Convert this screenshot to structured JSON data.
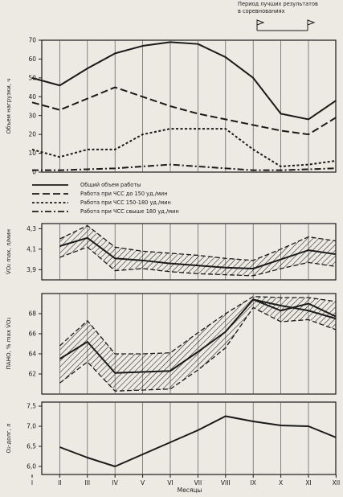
{
  "caption": {
    "line1": "Период лучших результатов",
    "line2": "в соревнованиях"
  },
  "months": [
    "I",
    "II",
    "III",
    "IV",
    "V",
    "VI",
    "VII",
    "VIII",
    "IX",
    "X",
    "XI",
    "XII"
  ],
  "xlabel": "Месяцы",
  "chart_data": [
    {
      "type": "line",
      "ylabel": "Объем нагрузки, ч",
      "ylim": [
        0,
        70
      ],
      "yticks": [
        0,
        10,
        20,
        30,
        40,
        50,
        60,
        70
      ],
      "grid": "vertical",
      "legend_placement": "bottom",
      "series": [
        {
          "name": "Общий объем работы",
          "style": "solid",
          "x": [
            1,
            2,
            3,
            4,
            5,
            6,
            7,
            8,
            9,
            10,
            11,
            12
          ],
          "y": [
            50,
            46,
            55,
            63,
            67,
            69,
            68,
            61,
            50,
            31,
            28,
            38
          ]
        },
        {
          "name": "Работа при ЧСС до 150 уд./мин",
          "style": "dashed",
          "x": [
            1,
            2,
            3,
            4,
            5,
            6,
            7,
            8,
            9,
            10,
            11,
            12
          ],
          "y": [
            37,
            33,
            39,
            45,
            40,
            35,
            31,
            28,
            25,
            22,
            20,
            29
          ]
        },
        {
          "name": "Работа при ЧСС 150-180 уд./мин",
          "style": "dotted",
          "x": [
            1,
            2,
            3,
            4,
            5,
            6,
            7,
            8,
            9,
            10,
            11,
            12
          ],
          "y": [
            12,
            8,
            12,
            12,
            20,
            23,
            23,
            23,
            12,
            3,
            4,
            6
          ]
        },
        {
          "name": "Работа при ЧСС свыше 180 уд./мин",
          "style": "dashdot",
          "x": [
            1,
            2,
            3,
            4,
            5,
            6,
            7,
            8,
            9,
            10,
            11,
            12
          ],
          "y": [
            1,
            1,
            1.5,
            2,
            3,
            4,
            3,
            2,
            1,
            1,
            1.5,
            2
          ]
        }
      ]
    },
    {
      "type": "area",
      "ylabel": "V̇O₂ max, л/мин",
      "ylim": [
        3.8,
        4.35
      ],
      "yticks": [
        3.9,
        4.1,
        4.3
      ],
      "yticklabels": [
        "3,9",
        "4,1",
        "4,3"
      ],
      "grid": "vertical",
      "series": [
        {
          "style": "solid",
          "x": [
            2,
            3,
            4,
            5,
            6,
            7,
            8,
            9,
            10,
            11,
            12
          ],
          "y": [
            4.13,
            4.21,
            4.01,
            3.99,
            3.96,
            3.94,
            3.92,
            3.91,
            4.0,
            4.09,
            4.05
          ]
        }
      ],
      "band": {
        "x": [
          2,
          3,
          4,
          5,
          6,
          7,
          8,
          9,
          10,
          11,
          12
        ],
        "upper": [
          4.2,
          4.33,
          4.12,
          4.08,
          4.06,
          4.04,
          4.01,
          3.99,
          4.1,
          4.22,
          4.18
        ],
        "lower": [
          4.02,
          4.12,
          3.89,
          3.91,
          3.88,
          3.86,
          3.85,
          3.84,
          3.91,
          3.97,
          3.93
        ]
      }
    },
    {
      "type": "area",
      "ylabel": "ПАНО, % max V̇O₂",
      "ylim": [
        60,
        70
      ],
      "yticks": [
        62,
        64,
        66,
        68
      ],
      "grid": "vertical",
      "series": [
        {
          "style": "solid",
          "x": [
            2,
            3,
            4,
            5,
            6,
            7,
            8,
            9,
            10,
            11,
            12
          ],
          "y": [
            63.5,
            65.2,
            62.1,
            62.2,
            62.3,
            64.2,
            66.2,
            69.4,
            68.3,
            69.0,
            67.7
          ]
        },
        {
          "style": "solid",
          "x": [
            9,
            10,
            11,
            12
          ],
          "y": [
            69.4,
            68.8,
            68.3,
            67.5
          ]
        }
      ],
      "band": {
        "x": [
          2,
          3,
          4,
          5,
          6,
          7,
          8,
          9,
          10,
          11,
          12
        ],
        "upper": [
          64.8,
          67.3,
          64.0,
          64.0,
          64.1,
          66.1,
          68.0,
          69.7,
          69.6,
          69.6,
          69.2
        ],
        "lower": [
          61.1,
          63.2,
          60.3,
          60.4,
          60.5,
          62.4,
          64.6,
          68.6,
          67.2,
          67.4,
          66.4
        ]
      }
    },
    {
      "type": "line",
      "ylabel": "O₂-долг, л",
      "ylim": [
        5.8,
        7.6
      ],
      "yticks": [
        6.0,
        6.5,
        7.0,
        7.5
      ],
      "yticklabels": [
        "6,0",
        "6,5",
        "7,0",
        "7,5"
      ],
      "grid": "vertical",
      "series": [
        {
          "style": "solid",
          "x": [
            2,
            3,
            4,
            5,
            6,
            7,
            8,
            9,
            10,
            11,
            12
          ],
          "y": [
            6.48,
            6.22,
            6.0,
            6.3,
            6.6,
            6.9,
            7.25,
            7.12,
            7.02,
            7.0,
            6.72
          ]
        }
      ]
    }
  ]
}
